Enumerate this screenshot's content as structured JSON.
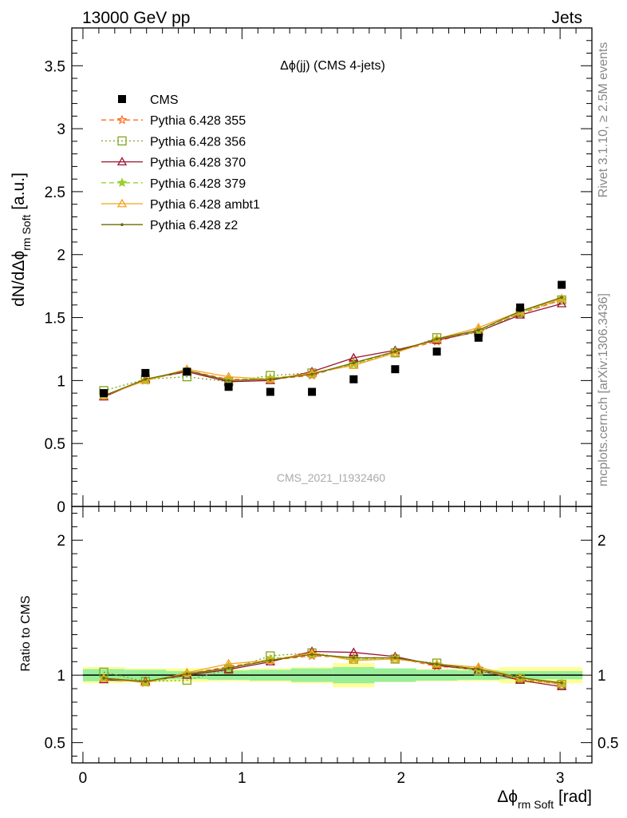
{
  "header": {
    "left": "13000 GeV pp",
    "right": "Jets"
  },
  "side_labels": {
    "rivet": "Rivet 3.1.10, ≥ 2.5M events",
    "mcplots": "mcplots.cern.ch [arXiv:1306.3436]"
  },
  "chart_data": {
    "type": "line",
    "title": "Δϕ(jj) (CMS 4-jets)",
    "watermark": "CMS_2021_I1932460",
    "xlabel": "Δϕ rm Soft [rad]",
    "ylabel": "dN/dΔϕ rm Soft [a.u.]",
    "ratio_ylabel": "Ratio to CMS",
    "xlim": [
      -0.07,
      3.2
    ],
    "ylim": [
      0,
      3.8
    ],
    "ratio_ylim": [
      0.35,
      2.25
    ],
    "x_ticks": [
      "0",
      "1",
      "2",
      "3"
    ],
    "y_ticks": [
      "0",
      "0.5",
      "1",
      "1.5",
      "2",
      "2.5",
      "3",
      "3.5"
    ],
    "ratio_y_ticks": [
      "0.5",
      "1",
      "2"
    ],
    "legend_position": "top-left",
    "x": [
      0.131,
      0.393,
      0.654,
      0.916,
      1.178,
      1.44,
      1.702,
      1.963,
      2.225,
      2.487,
      2.749,
      3.01
    ],
    "data": {
      "name": "CMS",
      "color": "#000000",
      "values": [
        0.9,
        1.06,
        1.07,
        0.95,
        0.91,
        0.91,
        1.01,
        1.09,
        1.23,
        1.34,
        1.58,
        1.76
      ],
      "band_inner": [
        0.045,
        0.04,
        0.03,
        0.035,
        0.04,
        0.05,
        0.06,
        0.05,
        0.04,
        0.035,
        0.03,
        0.03
      ],
      "band_outer": [
        0.06,
        0.05,
        0.05,
        0.045,
        0.05,
        0.06,
        0.09,
        0.05,
        0.045,
        0.045,
        0.06,
        0.06
      ]
    },
    "series": [
      {
        "name": "Pythia 6.428 355",
        "color": "#ff6a1a",
        "dash": "6,4",
        "marker": "star-open",
        "values": [
          0.88,
          1.0,
          1.08,
          1.01,
          1.01,
          1.04,
          1.14,
          1.23,
          1.31,
          1.4,
          1.53,
          1.64
        ]
      },
      {
        "name": "Pythia 6.428 356",
        "color": "#7fa41a",
        "dash": "2,3",
        "marker": "square-open",
        "values": [
          0.92,
          1.01,
          1.03,
          0.99,
          1.04,
          1.06,
          1.13,
          1.22,
          1.34,
          1.38,
          1.54,
          1.64
        ]
      },
      {
        "name": "Pythia 6.428 370",
        "color": "#9a1230",
        "dash": "",
        "marker": "triangle-open",
        "values": [
          0.87,
          1.01,
          1.07,
          0.99,
          1.0,
          1.07,
          1.18,
          1.24,
          1.32,
          1.39,
          1.52,
          1.61
        ]
      },
      {
        "name": "Pythia 6.428 379",
        "color": "#9acd32",
        "dash": "6,4",
        "marker": "star",
        "values": [
          0.88,
          1.0,
          1.08,
          1.0,
          1.02,
          1.05,
          1.13,
          1.23,
          1.33,
          1.39,
          1.54,
          1.65
        ]
      },
      {
        "name": "Pythia 6.428 ambt1",
        "color": "#f5a21a",
        "dash": "",
        "marker": "triangle-open",
        "values": [
          0.88,
          1.0,
          1.09,
          1.03,
          1.01,
          1.06,
          1.12,
          1.22,
          1.33,
          1.42,
          1.55,
          1.65
        ]
      },
      {
        "name": "Pythia 6.428 z2",
        "color": "#6b6b00",
        "dash": "",
        "marker": "dot",
        "values": [
          0.88,
          1.01,
          1.08,
          1.0,
          1.01,
          1.05,
          1.14,
          1.23,
          1.33,
          1.4,
          1.55,
          1.66
        ]
      }
    ]
  }
}
